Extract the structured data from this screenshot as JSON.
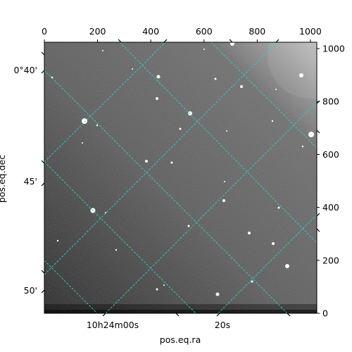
{
  "figure": {
    "xlabel": "pos.eq.ra",
    "ylabel": "pos.eq.dec",
    "grid_color": "#2fd0d0",
    "background_top_right": "#c8c8c8",
    "background_bottom_left": "#202020"
  },
  "pixel_axes": {
    "top": {
      "ticks": [
        "0",
        "200",
        "400",
        "600",
        "800",
        "1000"
      ],
      "range": [
        0,
        1024
      ]
    },
    "right": {
      "ticks": [
        "0",
        "200",
        "400",
        "600",
        "800",
        "1000"
      ],
      "range": [
        0,
        1024
      ]
    }
  },
  "world_axes": {
    "ra": {
      "ticks": [
        {
          "label": "10h24m00s"
        },
        {
          "label": "20s"
        }
      ]
    },
    "dec": {
      "ticks": [
        {
          "label": "0°40'"
        },
        {
          "label": "45'"
        },
        {
          "label": "50'"
        }
      ]
    }
  }
}
